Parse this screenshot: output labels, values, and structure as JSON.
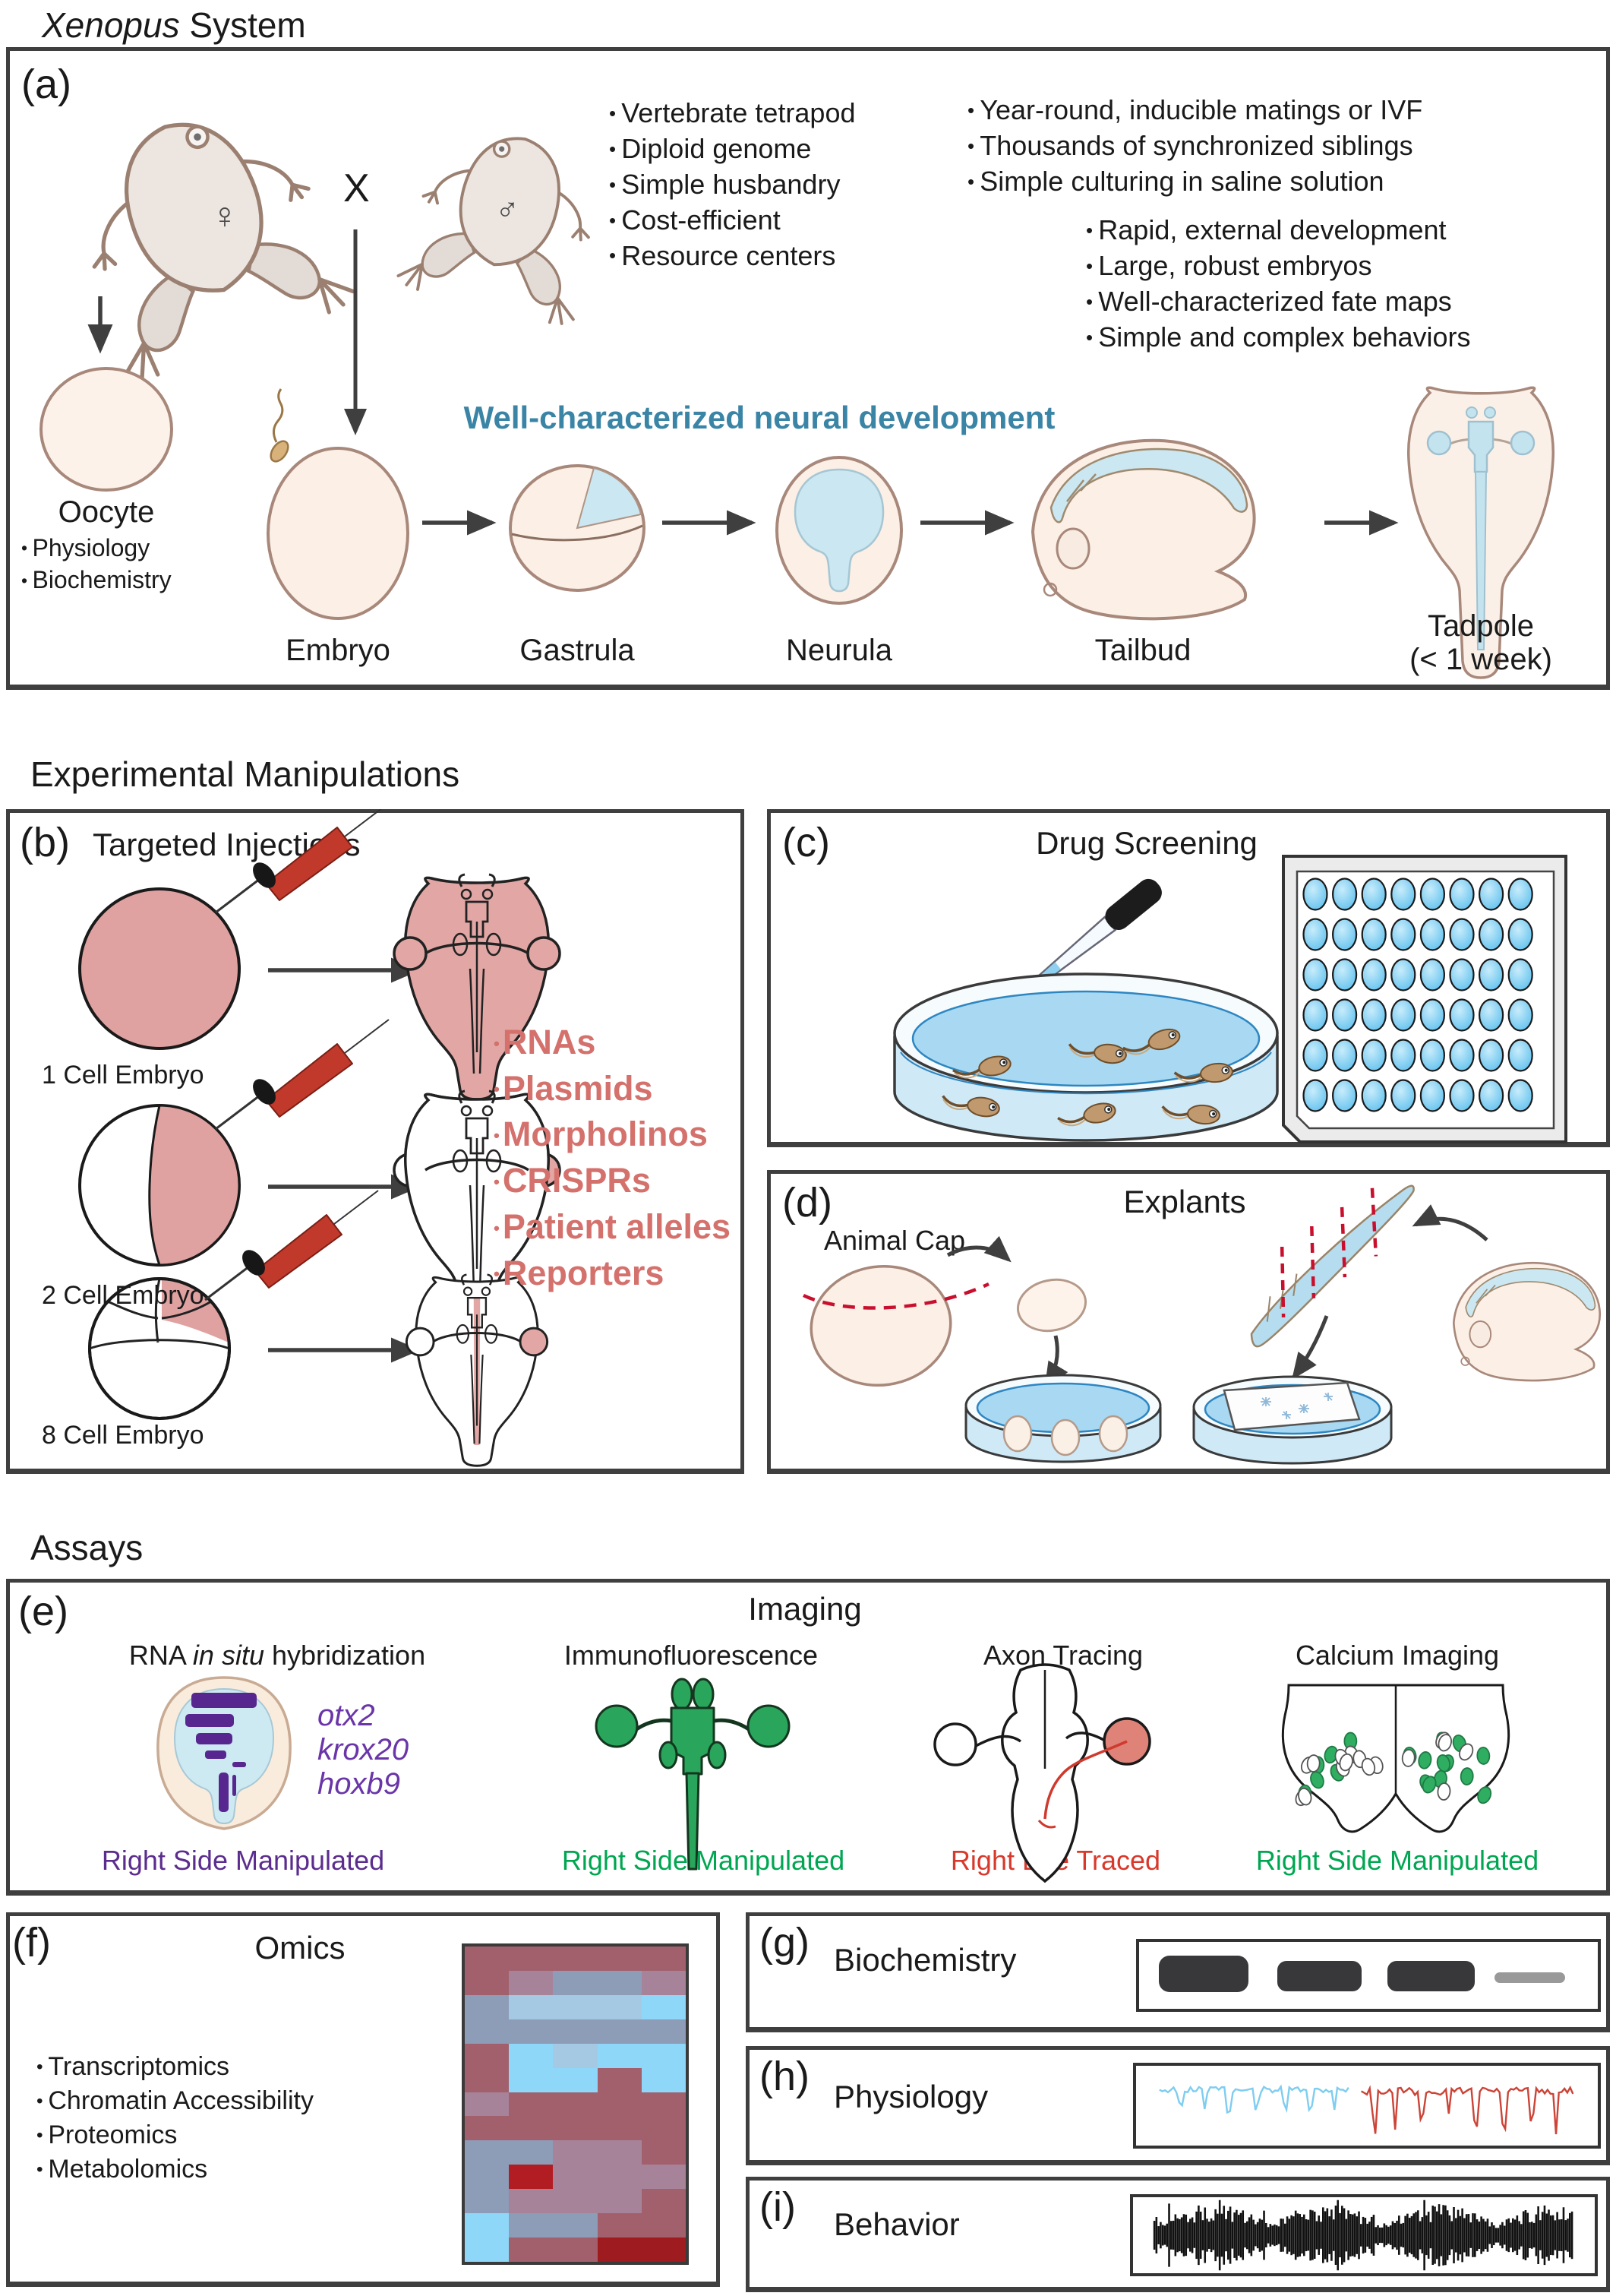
{
  "title": {
    "italic": "Xenopus",
    "rest": " System"
  },
  "colors": {
    "panel_border": "#3f3f3f",
    "teal_heading": "#3a84a6",
    "injection_list": "#d4716c",
    "embryo_pink": "#e2a7a5",
    "cream": "#faeee3",
    "neural_blue": "#cbe7f1",
    "purple_caption": "#5b2d8e",
    "green_caption": "#00a651",
    "red_caption": "#d8392c",
    "water_blue": "#aedcf4",
    "well_blue": "#62c4ef"
  },
  "section_titles": {
    "manipulations": "Experimental Manipulations",
    "assays": "Assays"
  },
  "panel_a": {
    "label": "(a)",
    "cross": "X",
    "female_symbol": "♀",
    "male_symbol": "♂",
    "list1": [
      "Vertebrate tetrapod",
      "Diploid genome",
      "Simple husbandry",
      "Cost-efficient",
      "Resource centers"
    ],
    "list2": [
      "Year-round, inducible matings or IVF",
      "Thousands of synchronized siblings",
      "Simple culturing in saline solution"
    ],
    "list3": [
      "Rapid, external development",
      "Large, robust embryos",
      "Well-characterized fate maps",
      "Simple and complex behaviors"
    ],
    "neural_heading": "Well-characterized neural development",
    "oocyte": {
      "name": "Oocyte",
      "bullets": [
        "Physiology",
        "Biochemistry"
      ]
    },
    "stages": {
      "embryo": "Embryo",
      "gastrula": "Gastrula",
      "neurula": "Neurula",
      "tailbud": "Tailbud"
    },
    "tadpole_label": {
      "line1": "Tadpole",
      "line2": "(< 1 week)"
    }
  },
  "panel_b": {
    "label": "(b)",
    "title": "Targeted Injections",
    "rows": [
      "1 Cell Embryo",
      "2 Cell Embryo",
      "8 Cell Embryo"
    ],
    "injectables": [
      "RNAs",
      "Plasmids",
      "Morpholinos",
      "CRISPRs",
      "Patient alleles",
      "Reporters"
    ]
  },
  "panel_c": {
    "label": "(c)",
    "title": "Drug Screening",
    "plate": {
      "rows": 6,
      "cols": 8
    }
  },
  "panel_d": {
    "label": "(d)",
    "title": "Explants",
    "animal_cap": "Animal Cap"
  },
  "panel_e": {
    "label": "(e)",
    "title": "Imaging",
    "insitu": {
      "title_pre": "RNA ",
      "title_it": "in situ",
      "title_post": " hybridization",
      "genes": [
        "otx2",
        "krox20",
        "hoxb9"
      ],
      "caption": "Right Side Manipulated"
    },
    "immuno": {
      "title": "Immunofluorescence",
      "caption": "Right Side Manipulated"
    },
    "axon": {
      "title": "Axon Tracing",
      "caption": "Right Eye Traced"
    },
    "calcium": {
      "title": "Calcium Imaging",
      "caption": "Right Side Manipulated"
    }
  },
  "panel_f": {
    "label": "(f)",
    "title": "Omics",
    "bullets": [
      "Transcriptomics",
      "Chromatin Accessibility",
      "Proteomics",
      "Metabolomics"
    ],
    "heatmap": {
      "palette": {
        "M": "#a2606d",
        "V": "#a7839a",
        "B": "#8d9cb7",
        "S": "#8ed7f8",
        "L": "#a5c9e2",
        "R": "#b11d23",
        "D": "#9e1b1f"
      },
      "grid": [
        [
          "M",
          "M",
          "M",
          "M",
          "M"
        ],
        [
          "M",
          "V",
          "B",
          "B",
          "V"
        ],
        [
          "B",
          "L",
          "L",
          "L",
          "S"
        ],
        [
          "B",
          "B",
          "B",
          "B",
          "B"
        ],
        [
          "M",
          "S",
          "L",
          "S",
          "S"
        ],
        [
          "M",
          "S",
          "S",
          "M",
          "S"
        ],
        [
          "V",
          "M",
          "M",
          "M",
          "M"
        ],
        [
          "M",
          "M",
          "M",
          "M",
          "M"
        ],
        [
          "B",
          "B",
          "V",
          "V",
          "M"
        ],
        [
          "B",
          "R",
          "V",
          "V",
          "V"
        ],
        [
          "B",
          "V",
          "V",
          "V",
          "M"
        ],
        [
          "S",
          "B",
          "B",
          "M",
          "M"
        ],
        [
          "S",
          "M",
          "M",
          "D",
          "D"
        ]
      ]
    }
  },
  "panel_g": {
    "label": "(g)",
    "title": "Biochemistry"
  },
  "panel_h": {
    "label": "(h)",
    "title": "Physiology"
  },
  "panel_i": {
    "label": "(i)",
    "title": "Behavior"
  }
}
